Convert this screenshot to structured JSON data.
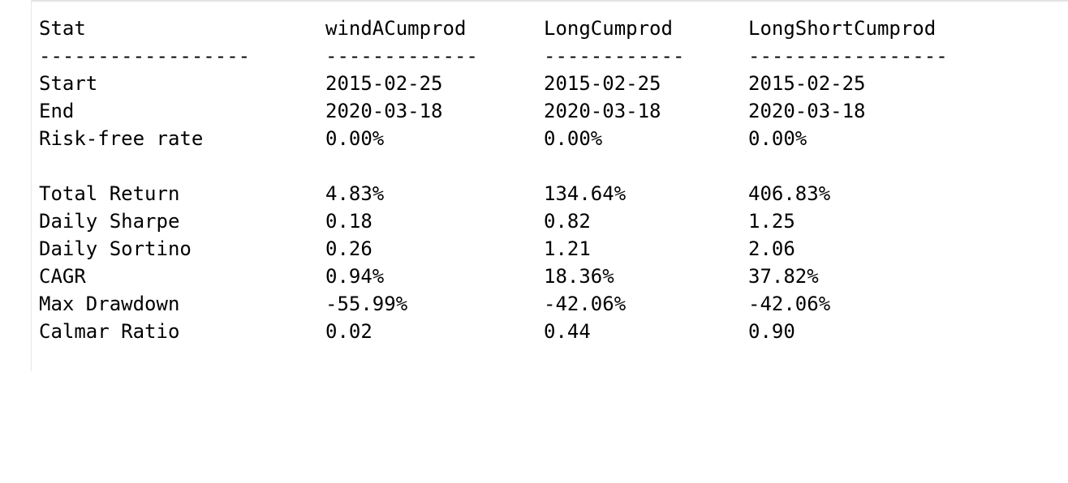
{
  "table": {
    "headers": [
      "Stat",
      "windACumprod",
      "LongCumprod",
      "LongShortCumprod"
    ],
    "separators": [
      "------------------",
      "-------------",
      "------------",
      "-----------------"
    ],
    "rows_top": [
      [
        "Start",
        "2015-02-25",
        "2015-02-25",
        "2015-02-25"
      ],
      [
        "End",
        "2020-03-18",
        "2020-03-18",
        "2020-03-18"
      ],
      [
        "Risk-free rate",
        "0.00%",
        "0.00%",
        "0.00%"
      ]
    ],
    "rows_bottom": [
      [
        "Total Return",
        "4.83%",
        "134.64%",
        "406.83%"
      ],
      [
        "Daily Sharpe",
        "0.18",
        "0.82",
        "1.25"
      ],
      [
        "Daily Sortino",
        "0.26",
        "1.21",
        "2.06"
      ],
      [
        "CAGR",
        "0.94%",
        "18.36%",
        "37.82%"
      ],
      [
        "Max Drawdown",
        "-55.99%",
        "-42.06%",
        "-42.06%"
      ],
      [
        "Calmar Ratio",
        "0.02",
        "0.44",
        "0.90"
      ]
    ]
  }
}
